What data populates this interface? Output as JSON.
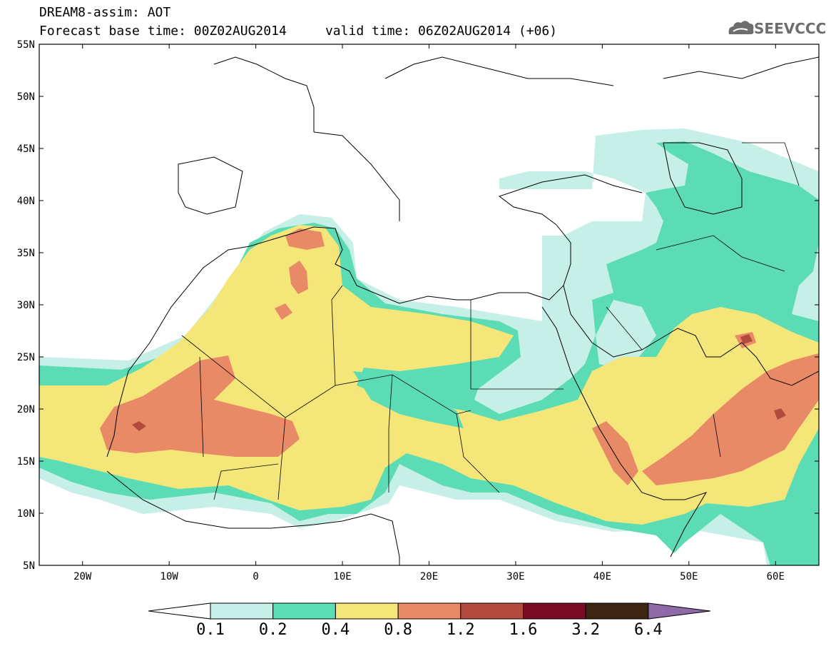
{
  "header": {
    "title_line1": "DREAM8-assim: AOT",
    "title_line2": "Forecast base time: 00Z02AUG2014     valid time: 06Z02AUG2014 (+06)",
    "logo_text": "SEEVCCC"
  },
  "map": {
    "lon_range": [
      -25,
      65
    ],
    "lat_range": [
      5,
      55
    ],
    "lat_labels": [
      "55N",
      "50N",
      "45N",
      "40N",
      "35N",
      "30N",
      "25N",
      "20N",
      "15N",
      "10N",
      "5N"
    ],
    "lon_labels": [
      "20W",
      "10W",
      "0",
      "10E",
      "20E",
      "30E",
      "40E",
      "50E",
      "60E"
    ],
    "variable": "AOT"
  },
  "colorbar": {
    "labels": [
      "0.1",
      "0.2",
      "0.4",
      "0.8",
      "1.2",
      "1.6",
      "3.2",
      "6.4"
    ],
    "colors": [
      "#c6efe8",
      "#5bdcb4",
      "#f5e67a",
      "#e98a66",
      "#b24b3e",
      "#7a0a25",
      "#3c2412",
      "#8e6aa6"
    ]
  }
}
